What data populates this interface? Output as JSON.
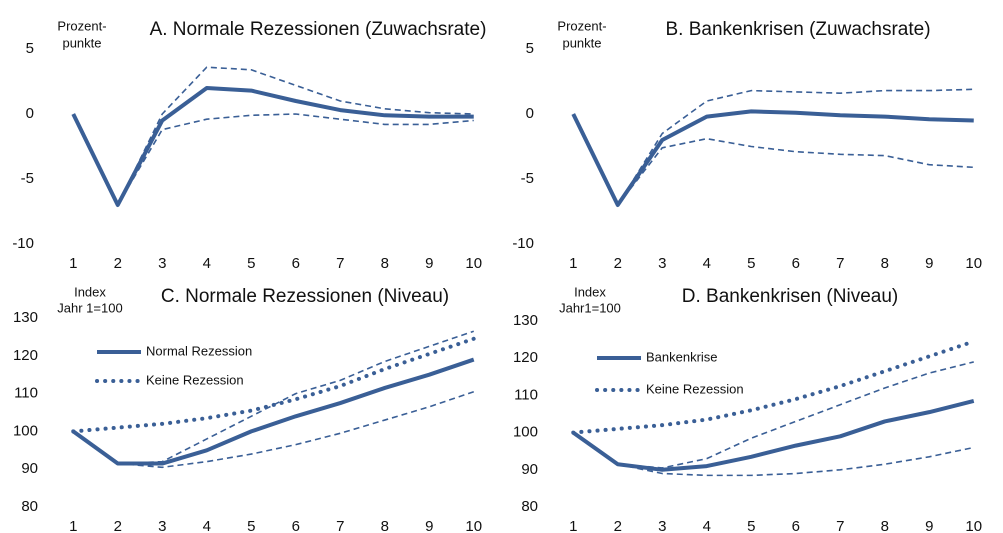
{
  "chart_data": [
    {
      "type": "line",
      "title": "A. Normale Rezessionen (Zuwachsrate)",
      "ylabel": [
        "Prozent-",
        "punkte"
      ],
      "categories": [
        "1",
        "2",
        "3",
        "4",
        "5",
        "6",
        "7",
        "8",
        "9",
        "10"
      ],
      "ylim": [
        -10,
        5
      ],
      "yticks": [
        5,
        0,
        -5,
        -10
      ],
      "grid": false,
      "series": [
        {
          "color": "#3a5f96",
          "style": "solid",
          "values": [
            0,
            -7,
            -0.5,
            2.0,
            1.8,
            1.0,
            0.3,
            -0.1,
            -0.2,
            -0.2
          ]
        },
        {
          "color": "#3a5f96",
          "style": "dashed",
          "values": [
            null,
            -7,
            0,
            3.6,
            3.4,
            2.2,
            1.0,
            0.4,
            0.1,
            0.0
          ]
        },
        {
          "color": "#3a5f96",
          "style": "dashed",
          "values": [
            null,
            -7,
            -1.2,
            -0.4,
            -0.1,
            0.0,
            -0.4,
            -0.8,
            -0.8,
            -0.5
          ]
        }
      ]
    },
    {
      "type": "line",
      "title": "B.  Bankenkrisen (Zuwachsrate)",
      "ylabel": [
        "Prozent-",
        "punkte"
      ],
      "categories": [
        "1",
        "2",
        "3",
        "4",
        "5",
        "6",
        "7",
        "8",
        "9",
        "10"
      ],
      "ylim": [
        -10,
        5
      ],
      "yticks": [
        5,
        0,
        -5,
        -10
      ],
      "grid": false,
      "series": [
        {
          "color": "#3a5f96",
          "style": "solid",
          "values": [
            0,
            -7,
            -2.0,
            -0.2,
            0.2,
            0.1,
            -0.1,
            -0.2,
            -0.4,
            -0.5
          ]
        },
        {
          "color": "#3a5f96",
          "style": "dashed",
          "values": [
            null,
            -7,
            -1.5,
            1.0,
            1.8,
            1.7,
            1.6,
            1.8,
            1.8,
            1.9
          ]
        },
        {
          "color": "#3a5f96",
          "style": "dashed",
          "values": [
            null,
            -7,
            -2.6,
            -1.9,
            -2.5,
            -2.9,
            -3.1,
            -3.2,
            -3.9,
            -4.1
          ]
        }
      ]
    },
    {
      "type": "line",
      "title": "C. Normale Rezessionen (Niveau)",
      "ylabel": [
        "Index",
        "Jahr 1=100"
      ],
      "categories": [
        "1",
        "2",
        "3",
        "4",
        "5",
        "6",
        "7",
        "8",
        "9",
        "10"
      ],
      "ylim": [
        80,
        130
      ],
      "yticks": [
        130,
        120,
        110,
        100,
        90,
        80
      ],
      "grid": false,
      "legend": "top-left",
      "series": [
        {
          "name": "Normal Rezession",
          "color": "#3a5f96",
          "style": "solid",
          "values": [
            100,
            91.5,
            91.5,
            95,
            100,
            104,
            107.5,
            111.5,
            115,
            119
          ]
        },
        {
          "name": "Keine Rezession",
          "color": "#3a5f96",
          "style": "dotted",
          "values": [
            100,
            101,
            102,
            103.5,
            105.5,
            108.5,
            112,
            116.5,
            120.5,
            124.5
          ]
        },
        {
          "color": "#3a5f96",
          "style": "dashed",
          "values": [
            null,
            91.5,
            92,
            98,
            104,
            110,
            113.5,
            118.5,
            122.5,
            126.5
          ]
        },
        {
          "color": "#3a5f96",
          "style": "dashed",
          "values": [
            null,
            91.5,
            90.5,
            92,
            94,
            96.5,
            99.5,
            103,
            106.5,
            110.5
          ]
        }
      ]
    },
    {
      "type": "line",
      "title": "D. Bankenkrisen (Niveau)",
      "ylabel": [
        "Index",
        "Jahr1=100"
      ],
      "categories": [
        "1",
        "2",
        "3",
        "4",
        "5",
        "6",
        "7",
        "8",
        "9",
        "10"
      ],
      "ylim": [
        80,
        130
      ],
      "yticks": [
        130,
        120,
        110,
        100,
        90,
        80
      ],
      "grid": false,
      "legend": "top-left",
      "series": [
        {
          "name": "Bankenkrise",
          "color": "#3a5f96",
          "style": "solid",
          "values": [
            100,
            91.5,
            90,
            91,
            93.5,
            96.5,
            99,
            103,
            105.5,
            108.5
          ]
        },
        {
          "name": "Keine Rezession",
          "color": "#3a5f96",
          "style": "dotted",
          "values": [
            100,
            101,
            102,
            103.5,
            106,
            109,
            112.5,
            116.5,
            120.5,
            124.5
          ]
        },
        {
          "color": "#3a5f96",
          "style": "dashed",
          "values": [
            null,
            91.5,
            90.5,
            93,
            98.5,
            103,
            107.5,
            112,
            116,
            119
          ]
        },
        {
          "color": "#3a5f96",
          "style": "dashed",
          "values": [
            null,
            91.5,
            89,
            88.5,
            88.5,
            89,
            90,
            91.5,
            93.5,
            96
          ]
        }
      ]
    }
  ]
}
